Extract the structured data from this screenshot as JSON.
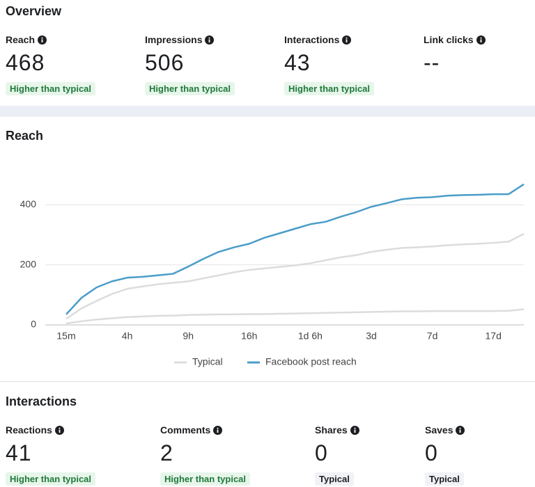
{
  "overview": {
    "title": "Overview",
    "metrics": [
      {
        "label": "Reach",
        "value": "468",
        "badge": "Higher than typical"
      },
      {
        "label": "Impressions",
        "value": "506",
        "badge": "Higher than typical"
      },
      {
        "label": "Interactions",
        "value": "43",
        "badge": "Higher than typical"
      },
      {
        "label": "Link clicks",
        "value": "--"
      }
    ]
  },
  "chart_data": {
    "type": "line",
    "title": "Reach",
    "categories": [
      "15m",
      null,
      null,
      null,
      "4h",
      null,
      null,
      null,
      "9h",
      null,
      null,
      null,
      "16h",
      null,
      null,
      null,
      "1d 6h",
      null,
      null,
      null,
      "3d",
      null,
      null,
      null,
      "7d",
      null,
      null,
      null,
      "17d",
      null,
      null
    ],
    "series": [
      {
        "name": "Typical",
        "color": "#dcdcdc",
        "low": [
          5,
          12,
          18,
          22,
          26,
          28,
          30,
          31,
          33,
          34,
          35,
          35,
          36,
          36,
          37,
          38,
          39,
          40,
          41,
          42,
          43,
          44,
          45,
          45,
          46,
          46,
          46,
          46,
          46,
          47,
          52
        ],
        "high": [
          20,
          55,
          80,
          103,
          120,
          128,
          135,
          140,
          145,
          155,
          165,
          175,
          183,
          188,
          193,
          198,
          205,
          215,
          225,
          232,
          243,
          250,
          256,
          258,
          261,
          265,
          268,
          270,
          273,
          277,
          303
        ]
      },
      {
        "name": "Facebook post reach",
        "color": "#4a9cc9",
        "values": [
          35,
          90,
          125,
          145,
          157,
          160,
          165,
          170,
          194,
          220,
          243,
          258,
          270,
          290,
          305,
          320,
          335,
          343,
          360,
          375,
          393,
          405,
          418,
          423,
          425,
          430,
          432,
          433,
          435,
          435,
          468
        ]
      }
    ],
    "ylim": [
      0,
      500
    ],
    "yticks": [
      0,
      200,
      400
    ],
    "grid": true,
    "legend": "bottom"
  },
  "interactions": {
    "title": "Interactions",
    "metrics": [
      {
        "label": "Reactions",
        "value": "41",
        "badge": "Higher than typical"
      },
      {
        "label": "Comments",
        "value": "2",
        "badge": "Higher than typical"
      },
      {
        "label": "Shares",
        "value": "0",
        "badge": "Typical"
      },
      {
        "label": "Saves",
        "value": "0",
        "badge": "Typical"
      }
    ]
  }
}
